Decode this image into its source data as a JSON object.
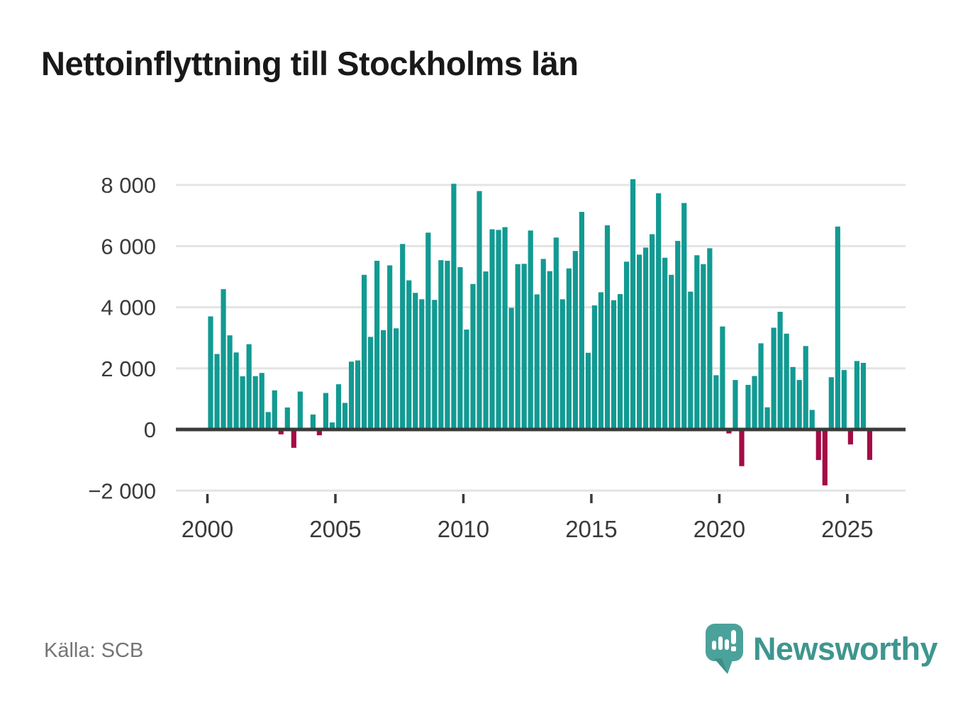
{
  "header": {
    "title": "Nettoinflyttning till Stockholms län"
  },
  "footer": {
    "source": "Källa: SCB",
    "brand": "Newsworthy"
  },
  "colors": {
    "positive_bar": "#129a92",
    "negative_bar": "#a30c45",
    "axis_line": "#3a3a3a",
    "gridline": "#e4e4e4",
    "tick_label": "#3a3a3a",
    "title_text": "#191919",
    "source_text": "#757575",
    "brand_teal": "#4ba29b",
    "brand_teal_dark": "#3f8e88",
    "brand_word_teal": "#3e968f"
  },
  "chart_data": {
    "type": "bar",
    "title": "Nettoinflyttning till Stockholms län",
    "source": "Källa: SCB",
    "frequency": "quarterly",
    "grid": true,
    "legend": false,
    "xlabel": "",
    "ylabel": "",
    "ylim": [
      -2400,
      8600
    ],
    "x_tick_years": [
      "2000",
      "2005",
      "2010",
      "2015",
      "2020",
      "2025"
    ],
    "y_ticks": [
      {
        "value": 8000,
        "label": "8 000"
      },
      {
        "value": 6000,
        "label": "6 000"
      },
      {
        "value": 4000,
        "label": "4 000"
      },
      {
        "value": 2000,
        "label": "2 000"
      },
      {
        "value": 0,
        "label": "0"
      },
      {
        "value": -2000,
        "label": "−2 000"
      }
    ],
    "categories": [
      "2000 Q1",
      "2000 Q2",
      "2000 Q3",
      "2000 Q4",
      "2001 Q1",
      "2001 Q2",
      "2001 Q3",
      "2001 Q4",
      "2002 Q1",
      "2002 Q2",
      "2002 Q3",
      "2002 Q4",
      "2003 Q1",
      "2003 Q2",
      "2003 Q3",
      "2003 Q4",
      "2004 Q1",
      "2004 Q2",
      "2004 Q3",
      "2004 Q4",
      "2005 Q1",
      "2005 Q2",
      "2005 Q3",
      "2005 Q4",
      "2006 Q1",
      "2006 Q2",
      "2006 Q3",
      "2006 Q4",
      "2007 Q1",
      "2007 Q2",
      "2007 Q3",
      "2007 Q4",
      "2008 Q1",
      "2008 Q2",
      "2008 Q3",
      "2008 Q4",
      "2009 Q1",
      "2009 Q2",
      "2009 Q3",
      "2009 Q4",
      "2010 Q1",
      "2010 Q2",
      "2010 Q3",
      "2010 Q4",
      "2011 Q1",
      "2011 Q2",
      "2011 Q3",
      "2011 Q4",
      "2012 Q1",
      "2012 Q2",
      "2012 Q3",
      "2012 Q4",
      "2013 Q1",
      "2013 Q2",
      "2013 Q3",
      "2013 Q4",
      "2014 Q1",
      "2014 Q2",
      "2014 Q3",
      "2014 Q4",
      "2015 Q1",
      "2015 Q2",
      "2015 Q3",
      "2015 Q4",
      "2016 Q1",
      "2016 Q2",
      "2016 Q3",
      "2016 Q4",
      "2017 Q1",
      "2017 Q2",
      "2017 Q3",
      "2017 Q4",
      "2018 Q1",
      "2018 Q2",
      "2018 Q3",
      "2018 Q4",
      "2019 Q1",
      "2019 Q2",
      "2019 Q3",
      "2019 Q4",
      "2020 Q1",
      "2020 Q2",
      "2020 Q3",
      "2020 Q4",
      "2021 Q1",
      "2021 Q2",
      "2021 Q3",
      "2021 Q4",
      "2022 Q1",
      "2022 Q2",
      "2022 Q3",
      "2022 Q4",
      "2023 Q1",
      "2023 Q2",
      "2023 Q3",
      "2023 Q4",
      "2024 Q1",
      "2024 Q2",
      "2024 Q3",
      "2024 Q4",
      "2025 Q1",
      "2025 Q2",
      "2025 Q3",
      "2025 Q4"
    ],
    "values": [
      3700,
      2470,
      4590,
      3080,
      2520,
      1740,
      2790,
      1745,
      1850,
      570,
      1280,
      -160,
      720,
      -600,
      1240,
      30,
      490,
      -190,
      1195,
      230,
      1480,
      870,
      2220,
      2260,
      5060,
      3030,
      5520,
      3250,
      5370,
      3310,
      6070,
      4880,
      4470,
      4260,
      6440,
      4240,
      5540,
      5520,
      8040,
      5310,
      3270,
      4760,
      7800,
      5170,
      6550,
      6530,
      6620,
      3980,
      5410,
      5420,
      6510,
      4420,
      5580,
      5180,
      6280,
      4260,
      5270,
      5840,
      7120,
      2510,
      4060,
      4490,
      6680,
      4230,
      4430,
      5490,
      8190,
      5720,
      5950,
      6390,
      7730,
      5620,
      5060,
      6170,
      7410,
      4510,
      5700,
      5410,
      5930,
      1775,
      3370,
      -130,
      1620,
      -1200,
      1460,
      1750,
      2820,
      725,
      3330,
      3850,
      3135,
      2045,
      1620,
      2730,
      640,
      -1000,
      -1830,
      1710,
      6640,
      1945,
      -490,
      2240,
      2180,
      -995
    ]
  }
}
